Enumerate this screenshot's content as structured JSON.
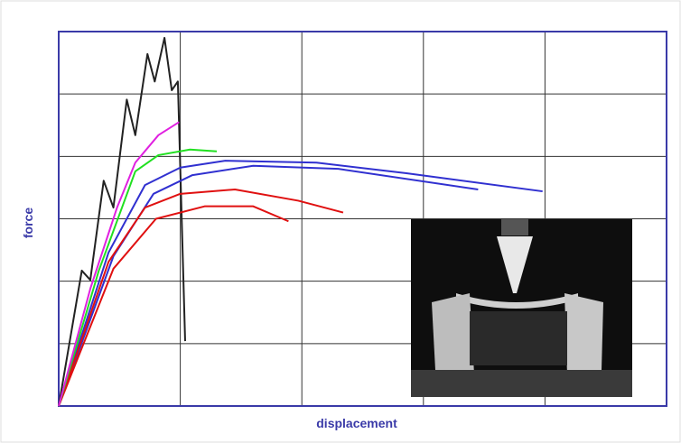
{
  "chart_data": {
    "type": "line",
    "x_label": "displacement",
    "y_label": "force",
    "xlim": [
      0,
      5
    ],
    "ylim": [
      0,
      6
    ],
    "xticks": [
      0,
      1,
      2,
      3,
      4,
      5
    ],
    "yticks": [
      0,
      1,
      2,
      3,
      4,
      5,
      6
    ],
    "grid": true,
    "series": [
      {
        "color": "#222222",
        "x": [
          0,
          0.19,
          0.26,
          0.37,
          0.45,
          0.56,
          0.63,
          0.73,
          0.79,
          0.87,
          0.93,
          0.98,
          1.04
        ],
        "values": [
          0,
          2.17,
          2.02,
          3.61,
          3.18,
          4.91,
          4.34,
          5.64,
          5.2,
          5.9,
          5.06,
          5.2,
          1.04
        ]
      },
      {
        "color": "#3030d0",
        "x": [
          0,
          0.41,
          0.71,
          1.0,
          1.37,
          2.12,
          2.86,
          3.98
        ],
        "values": [
          0,
          2.46,
          3.54,
          3.82,
          3.93,
          3.9,
          3.73,
          3.44
        ]
      },
      {
        "color": "#3030d0",
        "x": [
          0,
          0.45,
          0.78,
          1.1,
          1.6,
          2.3,
          3.45
        ],
        "values": [
          0,
          2.4,
          3.4,
          3.7,
          3.85,
          3.8,
          3.47
        ]
      },
      {
        "color": "#e01010",
        "x": [
          0,
          0.41,
          0.71,
          1.0,
          1.45,
          1.97,
          2.34
        ],
        "values": [
          0,
          2.31,
          3.18,
          3.4,
          3.47,
          3.29,
          3.1
        ]
      },
      {
        "color": "#e01010",
        "x": [
          0,
          0.45,
          0.8,
          1.2,
          1.6,
          1.89
        ],
        "values": [
          0,
          2.2,
          3.0,
          3.2,
          3.2,
          2.96
        ]
      },
      {
        "color": "#20e020",
        "x": [
          0,
          0.33,
          0.63,
          0.82,
          1.08,
          1.3
        ],
        "values": [
          0,
          2.17,
          3.76,
          4.02,
          4.11,
          4.08
        ]
      },
      {
        "color": "#e020e0",
        "x": [
          0,
          0.26,
          0.48,
          0.63,
          0.82,
          0.99
        ],
        "values": [
          0,
          1.88,
          3.18,
          3.9,
          4.34,
          4.55
        ]
      }
    ]
  }
}
